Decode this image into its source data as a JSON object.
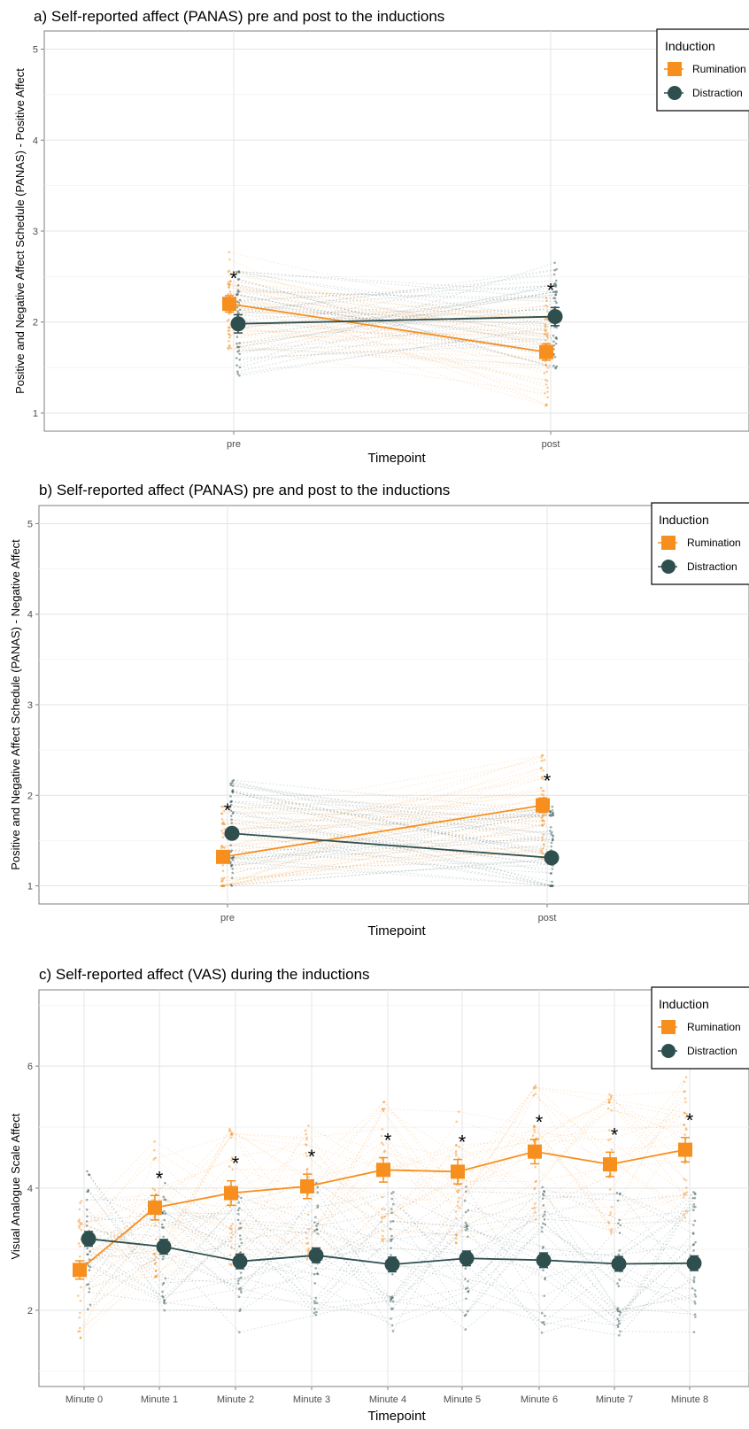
{
  "colors": {
    "rumination": "#F78F1E",
    "distraction": "#2F4F4F",
    "grid_major": "#E4E4E4",
    "grid_minor": "#F2F2F2",
    "panel_border": "#7F7F7F",
    "text": "#000000",
    "tick_text": "#4D4D4D"
  },
  "chart_data": [
    {
      "type": "line",
      "title": "a) Self-reported affect (PANAS) pre and post to the inductions",
      "xlabel": "Timepoint",
      "ylabel": "Positive and Negative Affect Schedule (PANAS) - Positive Affect",
      "categories": [
        "pre",
        "post"
      ],
      "ylim": [
        0.8,
        5.2
      ],
      "yticks": [
        "1",
        "2",
        "3",
        "4",
        "5"
      ],
      "grid": true,
      "legend": {
        "title": "Induction",
        "position": "top-right"
      },
      "significance": [
        0,
        1
      ],
      "series": [
        {
          "name": "Rumination",
          "marker": "square",
          "values": [
            2.2,
            1.67
          ],
          "errors": [
            0.09,
            0.09
          ]
        },
        {
          "name": "Distraction",
          "marker": "circle",
          "values": [
            1.98,
            2.06
          ],
          "errors": [
            0.1,
            0.1
          ]
        }
      ]
    },
    {
      "type": "line",
      "title": "b) Self-reported affect (PANAS) pre and post to the inductions",
      "xlabel": "Timepoint",
      "ylabel": "Positive and Negative Affect Schedule (PANAS) - Negative Affect",
      "categories": [
        "pre",
        "post"
      ],
      "ylim": [
        0.8,
        5.2
      ],
      "yticks": [
        "1",
        "2",
        "3",
        "4",
        "5"
      ],
      "grid": true,
      "legend": {
        "title": "Induction",
        "position": "top-right"
      },
      "significance": [
        0,
        1
      ],
      "series": [
        {
          "name": "Rumination",
          "marker": "square",
          "values": [
            1.32,
            1.89
          ],
          "errors": [
            0.06,
            0.08
          ]
        },
        {
          "name": "Distraction",
          "marker": "circle",
          "values": [
            1.58,
            1.31
          ],
          "errors": [
            0.06,
            0.05
          ]
        }
      ]
    },
    {
      "type": "line",
      "title": "c) Self-reported affect (VAS) during the inductions",
      "xlabel": "Timepoint",
      "ylabel": "Visual Analogue Scale Affect",
      "categories": [
        "Minute 0",
        "Minute 1",
        "Minute 2",
        "Minute 3",
        "Minute 4",
        "Minute 5",
        "Minute 6",
        "Minute 7",
        "Minute 8"
      ],
      "ylim": [
        0.75,
        7.25
      ],
      "yticks": [
        "2",
        "4",
        "6"
      ],
      "grid": true,
      "legend": {
        "title": "Induction",
        "position": "top-right"
      },
      "significance": [
        1,
        2,
        3,
        4,
        5,
        6,
        7,
        8
      ],
      "series": [
        {
          "name": "Rumination",
          "marker": "square",
          "values": [
            2.66,
            3.68,
            3.92,
            4.03,
            4.3,
            4.27,
            4.6,
            4.39,
            4.63
          ],
          "errors": [
            0.15,
            0.2,
            0.2,
            0.2,
            0.2,
            0.2,
            0.2,
            0.2,
            0.2
          ]
        },
        {
          "name": "Distraction",
          "marker": "circle",
          "values": [
            3.17,
            3.04,
            2.8,
            2.9,
            2.75,
            2.85,
            2.82,
            2.76,
            2.77
          ],
          "errors": [
            0.12,
            0.12,
            0.12,
            0.12,
            0.12,
            0.12,
            0.12,
            0.12,
            0.12
          ]
        }
      ]
    }
  ]
}
